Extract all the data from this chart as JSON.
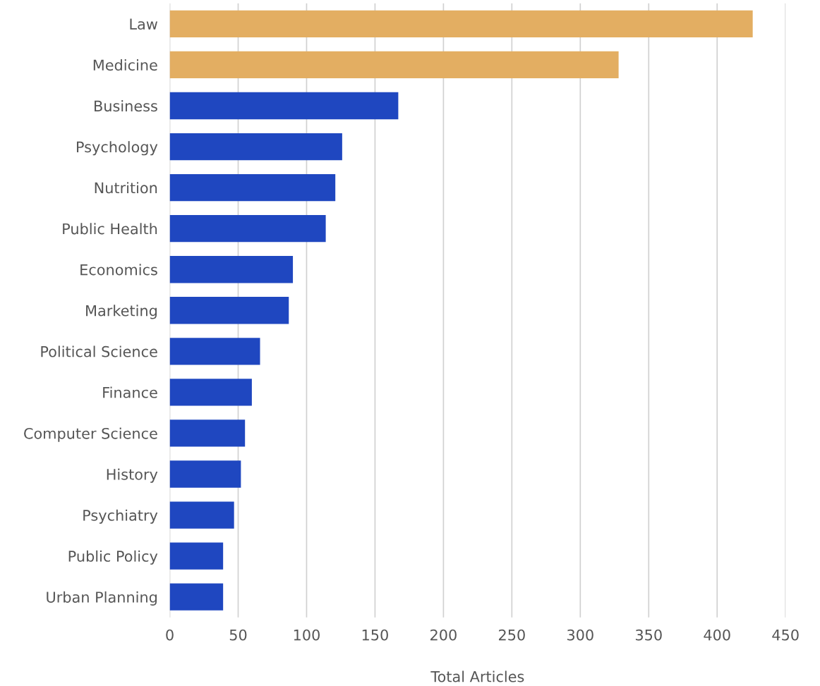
{
  "chart_data": {
    "type": "bar",
    "orientation": "horizontal",
    "xlabel": "Total Articles",
    "categories": [
      "Law",
      "Medicine",
      "Business",
      "Psychology",
      "Nutrition",
      "Public Health",
      "Economics",
      "Marketing",
      "Political Science",
      "Finance",
      "Computer Science",
      "History",
      "Psychiatry",
      "Public Policy",
      "Urban Planning"
    ],
    "values": [
      426,
      328,
      167,
      126,
      121,
      114,
      90,
      87,
      66,
      60,
      55,
      52,
      47,
      39,
      39
    ],
    "colors": [
      "#e3ae62",
      "#e3ae62",
      "#1f47c0",
      "#1f47c0",
      "#1f47c0",
      "#1f47c0",
      "#1f47c0",
      "#1f47c0",
      "#1f47c0",
      "#1f47c0",
      "#1f47c0",
      "#1f47c0",
      "#1f47c0",
      "#1f47c0",
      "#1f47c0"
    ],
    "xlim": [
      0,
      450
    ],
    "xticks": [
      0,
      50,
      100,
      150,
      200,
      250,
      300,
      350,
      400,
      450
    ],
    "grid": "x"
  }
}
